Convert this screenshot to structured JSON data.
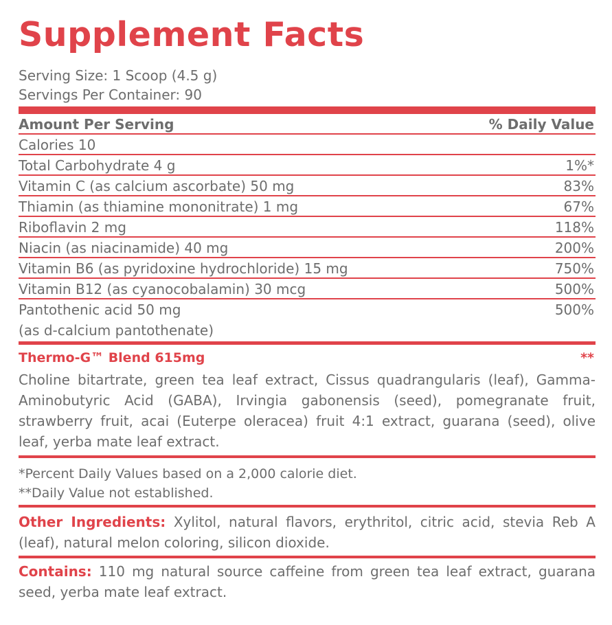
{
  "title": "Supplement Facts",
  "serving_size": "Serving Size: 1 Scoop (4.5 g)",
  "servings_per_container": "Servings Per Container: 90",
  "header": {
    "amount": "Amount Per Serving",
    "dv": "% Daily Value"
  },
  "rows": [
    {
      "name": "Calories 10",
      "dv": ""
    },
    {
      "name": "Total Carbohydrate 4 g",
      "dv": "1%*"
    },
    {
      "name": "Vitamin C (as calcium ascorbate) 50 mg",
      "dv": "83%"
    },
    {
      "name": "Thiamin (as thiamine mononitrate) 1 mg",
      "dv": "67%"
    },
    {
      "name": "Riboflavin 2 mg",
      "dv": "118%"
    },
    {
      "name": "Niacin (as niacinamide) 40 mg",
      "dv": "200%"
    },
    {
      "name": "Vitamin B6 (as pyridoxine hydrochloride) 15 mg",
      "dv": "750%"
    },
    {
      "name": "Vitamin B12 (as cyanocobalamin) 30 mcg",
      "dv": "500%"
    },
    {
      "name": "Pantothenic acid  50 mg",
      "name2": "(as d-calcium pantothenate)",
      "dv": "500%"
    }
  ],
  "blend": {
    "title": "Thermo-G™ Blend 615mg",
    "dv": "**",
    "ingredients": "Choline bitartrate, green tea leaf extract, Cissus quadrangularis (leaf), Gamma-Aminobutyric Acid (GABA), Irvingia gabonensis (seed), pomegranate fruit, strawberry fruit, acai (Euterpe oleracea) fruit 4:1 extract, guarana (seed), olive leaf, yerba mate leaf extract."
  },
  "footnotes": [
    "*Percent Daily Values based on a 2,000 calorie diet.",
    "**Daily Value not established."
  ],
  "other_ingredients": {
    "label": "Other Ingredients:",
    "text": " Xylitol, natural flavors, erythritol, citric acid, stevia Reb A (leaf), natural melon coloring, silicon dioxide."
  },
  "contains": {
    "label": "Contains:",
    "text": " 110 mg natural source caffeine from green tea leaf extract, guarana seed, yerba mate leaf extract."
  },
  "colors": {
    "accent": "#e0434a",
    "text": "#6d6d6d"
  }
}
